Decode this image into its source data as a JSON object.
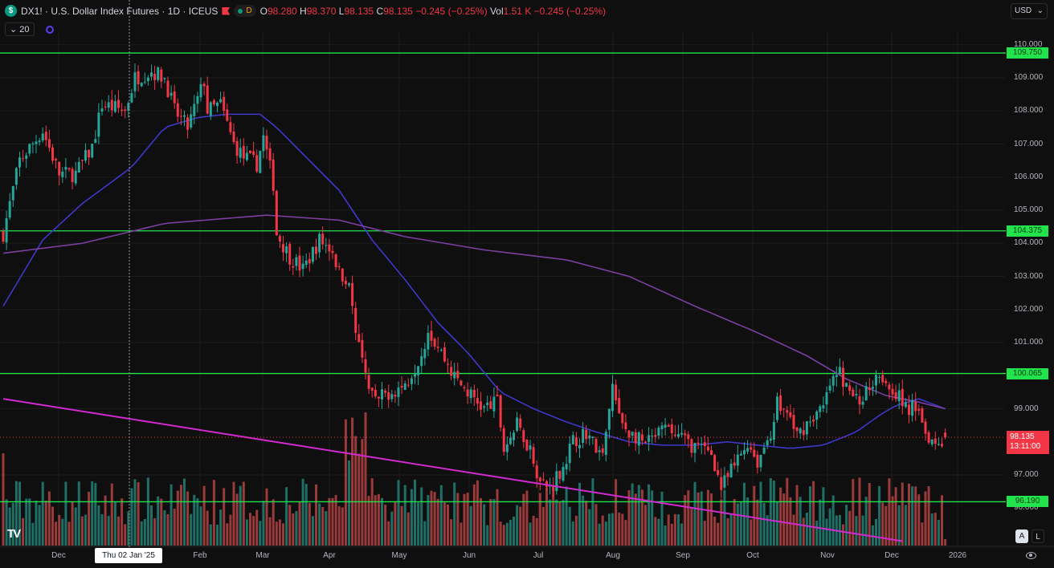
{
  "header": {
    "symbol_icon": "dollar-icon",
    "symbol_icon_text": "$",
    "title": "DX1! · U.S. Dollar Index Futures · 1D · ICEUS",
    "interval_chip": "D",
    "ohlc": [
      {
        "label": "O",
        "value": "98.280"
      },
      {
        "label": "H",
        "value": "98.370"
      },
      {
        "label": "L",
        "value": "98.135"
      },
      {
        "label": "C",
        "value": "98.135 −0.245 (−0.25%)"
      },
      {
        "label": "Vol",
        "value": "1.51 K −0.245 (−0.25%)"
      }
    ],
    "indicator_toggle": "⌄ 20"
  },
  "currency": {
    "value": "USD"
  },
  "price_axis": [
    "110.000",
    "109.000",
    "108.000",
    "107.000",
    "106.000",
    "105.000",
    "104.000",
    "103.000",
    "102.000",
    "101.000",
    "99.000",
    "97.000",
    "96.000"
  ],
  "horizontal_levels": [
    "109.750",
    "104.375",
    "100.065",
    "96.190"
  ],
  "current_price": {
    "value": "98.135",
    "countdown": "13:11:00",
    "color": "#f23645"
  },
  "time_axis": [
    "Dec",
    "Feb",
    "Mar",
    "Apr",
    "May",
    "Jun",
    "Jul",
    "Aug",
    "Sep",
    "Oct",
    "Nov",
    "Dec",
    "2026"
  ],
  "crosshair_label": "Thu 02 Jan '25",
  "scale_buttons": {
    "auto": "A",
    "log": "L"
  },
  "logo": "TV",
  "colors": {
    "up": "#26a69a",
    "down": "#f23645",
    "level": "#22e34c",
    "ma_fast": "#3f37c9",
    "ma_slow": "#7b3fa0",
    "trend": "#d12ad1"
  },
  "chart_data": {
    "type": "candlestick",
    "title": "DX1! · U.S. Dollar Index Futures · 1D",
    "ylim": [
      94.3,
      110.2
    ],
    "x_unit": "trading day index",
    "close_path": [
      [
        0,
        104.3
      ],
      [
        5,
        106.5
      ],
      [
        12,
        107.4
      ],
      [
        17,
        106.1
      ],
      [
        22,
        106.1
      ],
      [
        27,
        106.9
      ],
      [
        30,
        108.2
      ],
      [
        37,
        108
      ],
      [
        40,
        109
      ],
      [
        45,
        109.2
      ],
      [
        49,
        109
      ],
      [
        52,
        108
      ],
      [
        56,
        107.5
      ],
      [
        61,
        108.9
      ],
      [
        62,
        108
      ],
      [
        66,
        108.2
      ],
      [
        70,
        107
      ],
      [
        73,
        106.6
      ],
      [
        77,
        106.4
      ],
      [
        79,
        107.2
      ],
      [
        82,
        105.8
      ],
      [
        83,
        104.3
      ],
      [
        87,
        103.6
      ],
      [
        91,
        103.2
      ],
      [
        96,
        104.1
      ],
      [
        100,
        103.8
      ],
      [
        102,
        103.1
      ],
      [
        105,
        102.9
      ],
      [
        107,
        101.2
      ],
      [
        110,
        99.95
      ],
      [
        113,
        99.2
      ],
      [
        117,
        99.5
      ],
      [
        122,
        99.7
      ],
      [
        127,
        100.7
      ],
      [
        129,
        101.4
      ],
      [
        133,
        100.7
      ],
      [
        137,
        99.95
      ],
      [
        141,
        99.5
      ],
      [
        146,
        99
      ],
      [
        150,
        99.2
      ],
      [
        152,
        97.8
      ],
      [
        156,
        98.5
      ],
      [
        160,
        97.8
      ],
      [
        163,
        96.8
      ],
      [
        166,
        96.6
      ],
      [
        170,
        97.3
      ],
      [
        173,
        98
      ],
      [
        177,
        98.3
      ],
      [
        182,
        97.5
      ],
      [
        185,
        99.7
      ],
      [
        187,
        98.7
      ],
      [
        190,
        98.3
      ],
      [
        195,
        97.9
      ],
      [
        201,
        98.4
      ],
      [
        206,
        98.1
      ],
      [
        211,
        97.8
      ],
      [
        215,
        97.7
      ],
      [
        218,
        96.6
      ],
      [
        221,
        97.1
      ],
      [
        226,
        98
      ],
      [
        229,
        97.4
      ],
      [
        233,
        98.3
      ],
      [
        235,
        99.2
      ],
      [
        239,
        98.7
      ],
      [
        241,
        98.2
      ],
      [
        245,
        98.7
      ],
      [
        249,
        99
      ],
      [
        251,
        99.7
      ],
      [
        254,
        100.1
      ],
      [
        256,
        99.6
      ],
      [
        260,
        99.2
      ],
      [
        263,
        99.7
      ],
      [
        265,
        100.1
      ],
      [
        267,
        100
      ],
      [
        271,
        99.5
      ],
      [
        274,
        99
      ],
      [
        278,
        99.1
      ],
      [
        280,
        98.3
      ],
      [
        283,
        98
      ],
      [
        285,
        98.1
      ],
      [
        286,
        98.135
      ]
    ],
    "ma_fast": [
      [
        0,
        102.1
      ],
      [
        12,
        104.1
      ],
      [
        24,
        105.2
      ],
      [
        39,
        106.3
      ],
      [
        49,
        107.5
      ],
      [
        59,
        107.8
      ],
      [
        68,
        107.9
      ],
      [
        78,
        107.9
      ],
      [
        83,
        107.5
      ],
      [
        93,
        106.5
      ],
      [
        102,
        105.6
      ],
      [
        112,
        104.1
      ],
      [
        122,
        102.9
      ],
      [
        132,
        101.6
      ],
      [
        141,
        100.7
      ],
      [
        151,
        99.5
      ],
      [
        161,
        99
      ],
      [
        171,
        98.6
      ],
      [
        180,
        98.3
      ],
      [
        190,
        98
      ],
      [
        200,
        97.9
      ],
      [
        210,
        97.9
      ],
      [
        220,
        98
      ],
      [
        229,
        97.9
      ],
      [
        239,
        97.8
      ],
      [
        249,
        97.9
      ],
      [
        259,
        98.3
      ],
      [
        266,
        98.8
      ],
      [
        271,
        99.1
      ],
      [
        278,
        99.3
      ],
      [
        286,
        99.0
      ]
    ],
    "ma_slow": [
      [
        0,
        103.7
      ],
      [
        24,
        104.0
      ],
      [
        49,
        104.6
      ],
      [
        80,
        104.85
      ],
      [
        102,
        104.7
      ],
      [
        122,
        104.2
      ],
      [
        146,
        103.8
      ],
      [
        171,
        103.5
      ],
      [
        190,
        103.0
      ],
      [
        210,
        102.1
      ],
      [
        229,
        101.3
      ],
      [
        244,
        100.6
      ],
      [
        256,
        99.9
      ],
      [
        268,
        99.4
      ],
      [
        278,
        99.2
      ],
      [
        286,
        99.0
      ]
    ],
    "trendline": [
      [
        0,
        99.3
      ],
      [
        273,
        95.0
      ]
    ],
    "levels": [
      109.75,
      104.375,
      100.065,
      96.19
    ],
    "last_close": 98.135,
    "last_volume": "1.51K"
  }
}
